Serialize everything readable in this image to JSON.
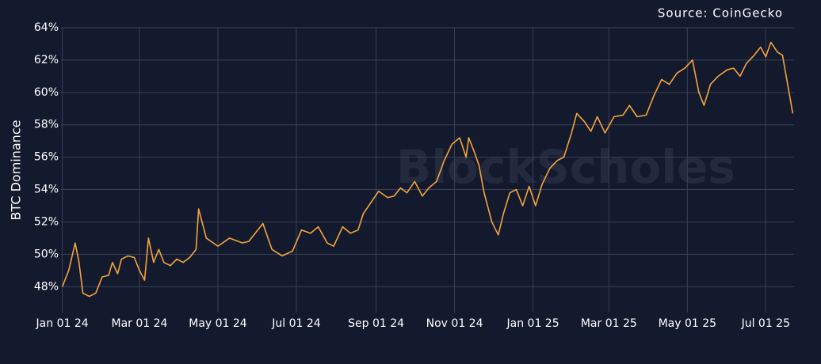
{
  "chart_data": {
    "type": "line",
    "source": "Source: CoinGecko",
    "watermark": "BlockScholes",
    "ylabel": "BTC Dominance",
    "grid": true,
    "xlim": [
      "2023-12-31",
      "2025-07-23"
    ],
    "ylim": [
      46.4,
      64
    ],
    "yticks": [
      {
        "value": 48,
        "label": "48%"
      },
      {
        "value": 50,
        "label": "50%"
      },
      {
        "value": 52,
        "label": "52%"
      },
      {
        "value": 54,
        "label": "54%"
      },
      {
        "value": 56,
        "label": "56%"
      },
      {
        "value": 58,
        "label": "58%"
      },
      {
        "value": 60,
        "label": "60%"
      },
      {
        "value": 62,
        "label": "62%"
      },
      {
        "value": 64,
        "label": "64%"
      }
    ],
    "xticks": [
      {
        "value": "2024-01-01",
        "label": "Jan 01 24"
      },
      {
        "value": "2024-03-01",
        "label": "Mar 01 24"
      },
      {
        "value": "2024-05-01",
        "label": "May 01 24"
      },
      {
        "value": "2024-07-01",
        "label": "Jul 01 24"
      },
      {
        "value": "2024-09-01",
        "label": "Sep 01 24"
      },
      {
        "value": "2024-11-01",
        "label": "Nov 01 24"
      },
      {
        "value": "2025-01-01",
        "label": "Jan 01 25"
      },
      {
        "value": "2025-03-01",
        "label": "Mar 01 25"
      },
      {
        "value": "2025-05-01",
        "label": "May 01 25"
      },
      {
        "value": "2025-07-01",
        "label": "Jul 01 25"
      }
    ],
    "x": [
      "2024-01-01",
      "2024-01-06",
      "2024-01-11",
      "2024-01-14",
      "2024-01-17",
      "2024-01-22",
      "2024-01-27",
      "2024-02-01",
      "2024-02-06",
      "2024-02-09",
      "2024-02-13",
      "2024-02-16",
      "2024-02-21",
      "2024-02-26",
      "2024-03-01",
      "2024-03-05",
      "2024-03-08",
      "2024-03-12",
      "2024-03-16",
      "2024-03-20",
      "2024-03-25",
      "2024-03-30",
      "2024-04-04",
      "2024-04-09",
      "2024-04-14",
      "2024-04-16",
      "2024-04-22",
      "2024-05-01",
      "2024-05-10",
      "2024-05-20",
      "2024-05-25",
      "2024-06-05",
      "2024-06-12",
      "2024-06-20",
      "2024-06-28",
      "2024-07-05",
      "2024-07-12",
      "2024-07-18",
      "2024-07-25",
      "2024-07-30",
      "2024-08-06",
      "2024-08-12",
      "2024-08-18",
      "2024-08-22",
      "2024-08-28",
      "2024-09-03",
      "2024-09-10",
      "2024-09-15",
      "2024-09-20",
      "2024-09-25",
      "2024-10-01",
      "2024-10-07",
      "2024-10-12",
      "2024-10-18",
      "2024-10-24",
      "2024-10-30",
      "2024-11-05",
      "2024-11-10",
      "2024-11-12",
      "2024-11-16",
      "2024-11-20",
      "2024-11-24",
      "2024-11-30",
      "2024-12-05",
      "2024-12-09",
      "2024-12-14",
      "2024-12-19",
      "2024-12-24",
      "2024-12-29",
      "2025-01-03",
      "2025-01-08",
      "2025-01-14",
      "2025-01-20",
      "2025-01-25",
      "2025-01-31",
      "2025-02-04",
      "2025-02-10",
      "2025-02-15",
      "2025-02-20",
      "2025-02-26",
      "2025-03-05",
      "2025-03-12",
      "2025-03-17",
      "2025-03-23",
      "2025-03-30",
      "2025-04-05",
      "2025-04-11",
      "2025-04-17",
      "2025-04-23",
      "2025-04-29",
      "2025-05-05",
      "2025-05-10",
      "2025-05-14",
      "2025-05-19",
      "2025-05-25",
      "2025-06-01",
      "2025-06-06",
      "2025-06-11",
      "2025-06-16",
      "2025-06-22",
      "2025-06-27",
      "2025-07-01",
      "2025-07-05",
      "2025-07-10",
      "2025-07-14",
      "2025-07-18",
      "2025-07-22"
    ],
    "series": [
      {
        "name": "BTC Dominance",
        "color": "#f5a33c",
        "values": [
          48.0,
          49.0,
          50.7,
          49.5,
          47.6,
          47.4,
          47.6,
          48.6,
          48.7,
          49.5,
          48.8,
          49.7,
          49.9,
          49.8,
          49.0,
          48.4,
          51.0,
          49.5,
          50.3,
          49.5,
          49.3,
          49.7,
          49.5,
          49.8,
          50.3,
          52.8,
          51.0,
          50.5,
          51.0,
          50.7,
          50.8,
          51.9,
          50.3,
          49.9,
          50.2,
          51.5,
          51.3,
          51.7,
          50.7,
          50.5,
          51.7,
          51.3,
          51.5,
          52.5,
          53.2,
          53.9,
          53.5,
          53.6,
          54.1,
          53.8,
          54.5,
          53.6,
          54.1,
          54.5,
          55.8,
          56.8,
          57.2,
          56.0,
          57.2,
          56.4,
          55.5,
          53.8,
          52.0,
          51.2,
          52.5,
          53.8,
          54.0,
          53.0,
          54.2,
          53.0,
          54.3,
          55.3,
          55.8,
          56.0,
          57.5,
          58.7,
          58.2,
          57.6,
          58.5,
          57.5,
          58.5,
          58.6,
          59.2,
          58.5,
          58.6,
          59.8,
          60.8,
          60.5,
          61.2,
          61.5,
          62.0,
          60.0,
          59.2,
          60.5,
          61.0,
          61.4,
          61.5,
          61.0,
          61.8,
          62.3,
          62.8,
          62.2,
          63.1,
          62.5,
          62.3,
          60.5,
          58.7
        ]
      }
    ]
  }
}
